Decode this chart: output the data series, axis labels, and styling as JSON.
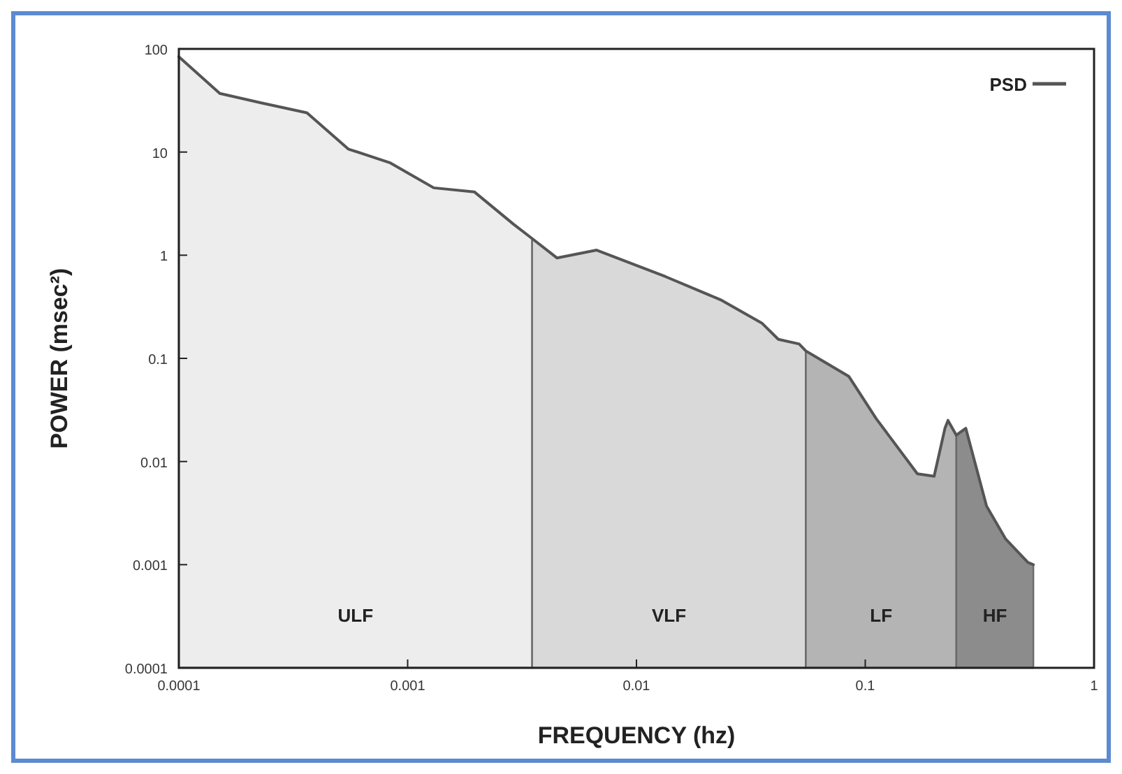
{
  "chart_data": {
    "type": "area",
    "xlabel": "FREQUENCY (hz)",
    "ylabel": "POWER (msec²)",
    "log": "xy",
    "xlim": [
      0.0001,
      1
    ],
    "ylim": [
      0.0001,
      100
    ],
    "xticks": [
      0.0001,
      0.001,
      0.01,
      0.1,
      1
    ],
    "yticks": [
      0.0001,
      0.001,
      0.01,
      0.1,
      1,
      10,
      100
    ],
    "grid": false,
    "legend": "top right",
    "series": [
      {
        "name": "ULF",
        "color": "#ededed",
        "x": [
          0.0001,
          0.000151,
          0.000229,
          0.000363,
          0.00055,
          0.000835,
          0.0013,
          0.00196,
          0.0029,
          0.0035
        ],
        "values": [
          84,
          37,
          30,
          24,
          10.7,
          7.9,
          4.5,
          4.1,
          2.0,
          1.45
        ]
      },
      {
        "name": "VLF",
        "color": "#d9d9d9",
        "x": [
          0.0035,
          0.0045,
          0.0067,
          0.0134,
          0.0233,
          0.0353,
          0.0417,
          0.0514,
          0.055
        ],
        "values": [
          1.45,
          0.94,
          1.12,
          0.62,
          0.37,
          0.22,
          0.153,
          0.138,
          0.118
        ]
      },
      {
        "name": "LF",
        "color": "#b4b4b4",
        "x": [
          0.055,
          0.0847,
          0.1117,
          0.169,
          0.2,
          0.223,
          0.23,
          0.25
        ],
        "values": [
          0.118,
          0.067,
          0.026,
          0.0076,
          0.0072,
          0.021,
          0.025,
          0.018
        ]
      },
      {
        "name": "HF",
        "color": "#8c8c8c",
        "x": [
          0.25,
          0.275,
          0.339,
          0.411,
          0.514,
          0.543
        ],
        "values": [
          0.018,
          0.021,
          0.0037,
          0.00177,
          0.00105,
          0.001
        ]
      },
      {
        "name": "PSD",
        "type": "line",
        "color": "#555555",
        "x": [
          0.0001,
          0.000151,
          0.000229,
          0.000363,
          0.00055,
          0.000835,
          0.0013,
          0.00196,
          0.0029,
          0.0035,
          0.0045,
          0.0067,
          0.0134,
          0.0233,
          0.0353,
          0.0417,
          0.0514,
          0.055,
          0.0847,
          0.1117,
          0.169,
          0.2,
          0.223,
          0.23,
          0.25,
          0.275,
          0.339,
          0.411,
          0.514,
          0.543
        ],
        "values": [
          84,
          37,
          30,
          24,
          10.7,
          7.9,
          4.5,
          4.1,
          2.0,
          1.45,
          0.94,
          1.12,
          0.62,
          0.37,
          0.22,
          0.153,
          0.138,
          0.118,
          0.067,
          0.026,
          0.0076,
          0.0072,
          0.021,
          0.025,
          0.018,
          0.021,
          0.0037,
          0.00177,
          0.00105,
          0.001
        ]
      }
    ]
  }
}
